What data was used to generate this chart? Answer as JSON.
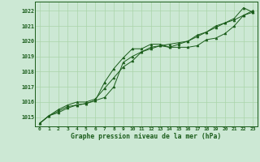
{
  "title": "Graphe pression niveau de la mer (hPa)",
  "background_color": "#cce8d4",
  "line_color": "#1a5c1a",
  "grid_color": "#aad4aa",
  "xlim": [
    -0.5,
    23.5
  ],
  "ylim": [
    1014.4,
    1022.6
  ],
  "yticks": [
    1015,
    1016,
    1017,
    1018,
    1019,
    1020,
    1021,
    1022
  ],
  "xticks": [
    0,
    1,
    2,
    3,
    4,
    5,
    6,
    7,
    8,
    9,
    10,
    11,
    12,
    13,
    14,
    15,
    16,
    17,
    18,
    19,
    20,
    21,
    22,
    23
  ],
  "series1": [
    1014.6,
    1015.1,
    1015.4,
    1015.7,
    1015.8,
    1015.9,
    1016.1,
    1017.3,
    1018.2,
    1018.9,
    1019.5,
    1019.5,
    1019.8,
    1019.8,
    1019.6,
    1019.6,
    1019.6,
    1019.7,
    1020.1,
    1020.2,
    1020.5,
    1021.0,
    1021.7,
    1021.9
  ],
  "series2": [
    1014.6,
    1015.1,
    1015.5,
    1015.8,
    1016.0,
    1016.0,
    1016.2,
    1016.9,
    1017.6,
    1018.3,
    1018.7,
    1019.3,
    1019.6,
    1019.7,
    1019.8,
    1019.9,
    1020.0,
    1020.4,
    1020.6,
    1020.9,
    1021.2,
    1021.4,
    1021.7,
    1022.0
  ],
  "series3": [
    1014.6,
    1015.1,
    1015.3,
    1015.6,
    1015.8,
    1015.9,
    1016.1,
    1016.3,
    1017.0,
    1018.6,
    1019.0,
    1019.3,
    1019.5,
    1019.7,
    1019.6,
    1019.8,
    1020.0,
    1020.3,
    1020.6,
    1021.0,
    1021.2,
    1021.5,
    1022.2,
    1021.9
  ]
}
